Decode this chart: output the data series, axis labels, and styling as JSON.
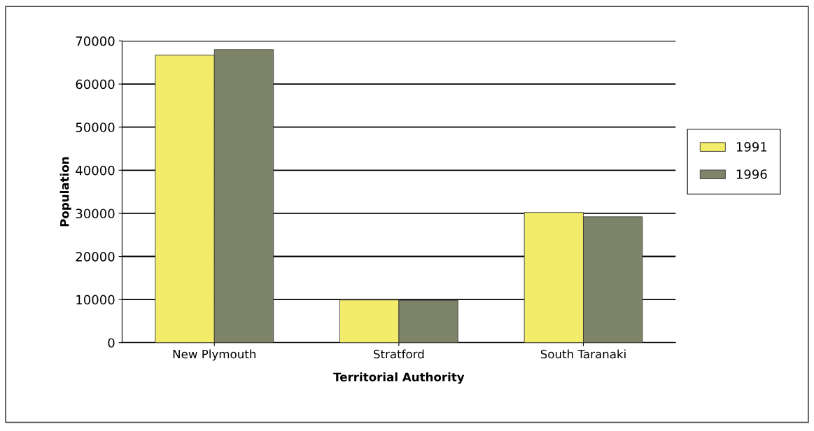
{
  "chart_data": {
    "type": "bar",
    "xlabel": "Territorial Authority",
    "ylabel": "Population",
    "categories": [
      "New Plymouth",
      "Stratford",
      "South Taranaki"
    ],
    "series": [
      {
        "name": "1991",
        "color": "#f2ec6a",
        "values": [
          66700,
          9900,
          30200
        ]
      },
      {
        "name": "1996",
        "color": "#7e8468",
        "values": [
          68000,
          9800,
          29200
        ]
      }
    ],
    "ylim": [
      0,
      70000
    ],
    "yticks": [
      0,
      10000,
      20000,
      30000,
      40000,
      50000,
      60000,
      70000
    ],
    "grid": "y",
    "legend": "right"
  }
}
